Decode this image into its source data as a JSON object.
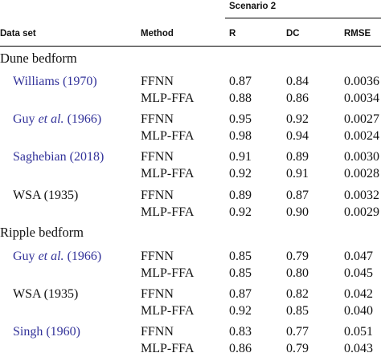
{
  "header": {
    "scenario": "Scenario 2",
    "columns": {
      "dataset": "Data set",
      "method": "Method",
      "r": "R",
      "dc": "DC",
      "rmse": "RMSE"
    }
  },
  "sections": [
    {
      "title": "Dune bedform",
      "groups": [
        {
          "dataset": {
            "pre": "Williams (1970)",
            "em": "",
            "post": ""
          },
          "linked": true,
          "rows": [
            {
              "method": "FFNN",
              "r": "0.87",
              "dc": "0.84",
              "rmse": "0.0036"
            },
            {
              "method": "MLP-FFA",
              "r": "0.88",
              "dc": "0.86",
              "rmse": "0.0034"
            }
          ]
        },
        {
          "dataset": {
            "pre": "Guy ",
            "em": "et al.",
            "post": " (1966)"
          },
          "linked": true,
          "rows": [
            {
              "method": "FFNN",
              "r": "0.95",
              "dc": "0.92",
              "rmse": "0.0027"
            },
            {
              "method": "MLP-FFA",
              "r": "0.98",
              "dc": "0.94",
              "rmse": "0.0024"
            }
          ]
        },
        {
          "dataset": {
            "pre": "Saghebian (2018)",
            "em": "",
            "post": ""
          },
          "linked": true,
          "rows": [
            {
              "method": "FFNN",
              "r": "0.91",
              "dc": "0.89",
              "rmse": "0.0030"
            },
            {
              "method": "MLP-FFA",
              "r": "0.92",
              "dc": "0.91",
              "rmse": "0.0028"
            }
          ]
        },
        {
          "dataset": {
            "pre": "WSA (1935)",
            "em": "",
            "post": ""
          },
          "linked": false,
          "rows": [
            {
              "method": "FFNN",
              "r": "0.89",
              "dc": "0.87",
              "rmse": "0.0032"
            },
            {
              "method": "MLP-FFA",
              "r": "0.92",
              "dc": "0.90",
              "rmse": "0.0029"
            }
          ]
        }
      ]
    },
    {
      "title": "Ripple bedform",
      "groups": [
        {
          "dataset": {
            "pre": "Guy ",
            "em": "et al.",
            "post": " (1966)"
          },
          "linked": true,
          "rows": [
            {
              "method": "FFNN",
              "r": "0.85",
              "dc": "0.79",
              "rmse": "0.047"
            },
            {
              "method": "MLP-FFA",
              "r": "0.85",
              "dc": "0.80",
              "rmse": "0.045"
            }
          ]
        },
        {
          "dataset": {
            "pre": "WSA (1935)",
            "em": "",
            "post": ""
          },
          "linked": false,
          "rows": [
            {
              "method": "FFNN",
              "r": "0.87",
              "dc": "0.82",
              "rmse": "0.042"
            },
            {
              "method": "MLP-FFA",
              "r": "0.92",
              "dc": "0.85",
              "rmse": "0.040"
            }
          ]
        },
        {
          "dataset": {
            "pre": "Singh (1960)",
            "em": "",
            "post": ""
          },
          "linked": true,
          "rows": [
            {
              "method": "FFNN",
              "r": "0.83",
              "dc": "0.77",
              "rmse": "0.051"
            },
            {
              "method": "MLP-FFA",
              "r": "0.86",
              "dc": "0.79",
              "rmse": "0.043"
            }
          ]
        }
      ]
    }
  ],
  "colors": {
    "link": "#33339a",
    "text": "#111111",
    "rule": "#000000"
  }
}
